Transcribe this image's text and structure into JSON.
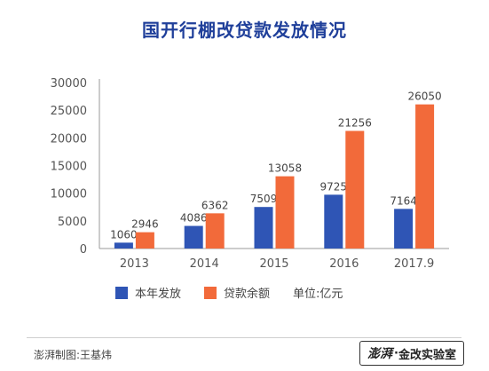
{
  "title": "国开行棚改贷款发放情况",
  "chart_data": {
    "type": "bar",
    "categories": [
      "2013",
      "2014",
      "2015",
      "2016",
      "2017.9"
    ],
    "series": [
      {
        "name": "本年发放",
        "values": [
          1060,
          4086,
          7509,
          9725,
          7164
        ],
        "color": "#2f55b5"
      },
      {
        "name": "贷款余额",
        "values": [
          2946,
          6362,
          13058,
          21256,
          26050
        ],
        "color": "#f26a3a"
      }
    ],
    "y_ticks": [
      "30000",
      "25000",
      "20000",
      "15000",
      "10000",
      "5000",
      "0"
    ],
    "ylim": [
      0,
      30000
    ],
    "grid": false
  },
  "legend": {
    "items": [
      "本年发放",
      "贷款余额"
    ],
    "unit": "单位:亿元"
  },
  "footer": {
    "credit": "澎湃制图:王基炜",
    "brand_logo": "澎湃",
    "brand_separator": "·",
    "brand_text": "金改实验室"
  }
}
